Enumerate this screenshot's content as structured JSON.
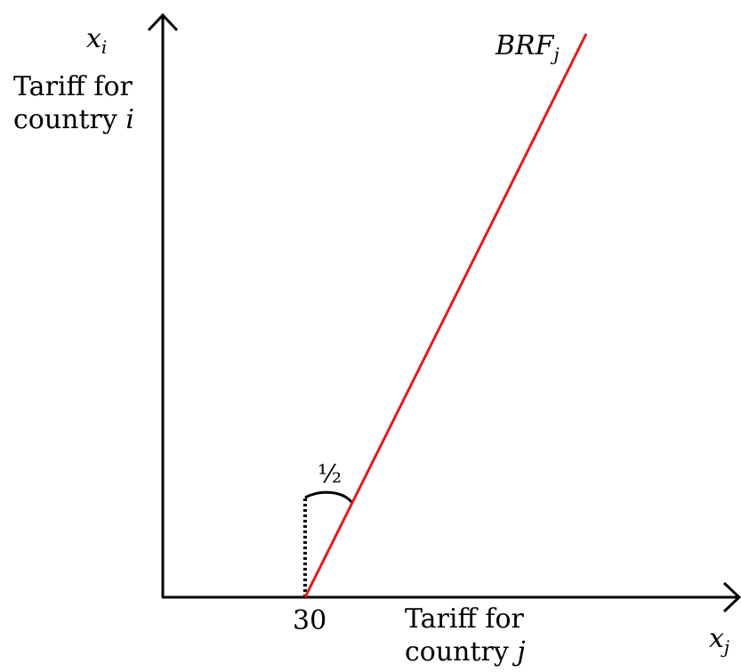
{
  "axes": {
    "y_symbol": "x",
    "y_symbol_sub": "i",
    "x_symbol": "x",
    "x_symbol_sub": "j",
    "y_label_line1": "Tariff for",
    "y_label_line2": "country",
    "y_label_var": "i",
    "x_label_line1": "Tariff for",
    "x_label_line2": "country",
    "x_label_var": "j"
  },
  "curve": {
    "name": "BRF",
    "name_sub": "j",
    "color": "#e8191b",
    "intercept_label": "30",
    "intercept_value": 30,
    "slope_label": "½",
    "slope_value": 0.5
  },
  "colors": {
    "axis": "#000000",
    "curve": "#e8191b",
    "dotted": "#000000"
  }
}
